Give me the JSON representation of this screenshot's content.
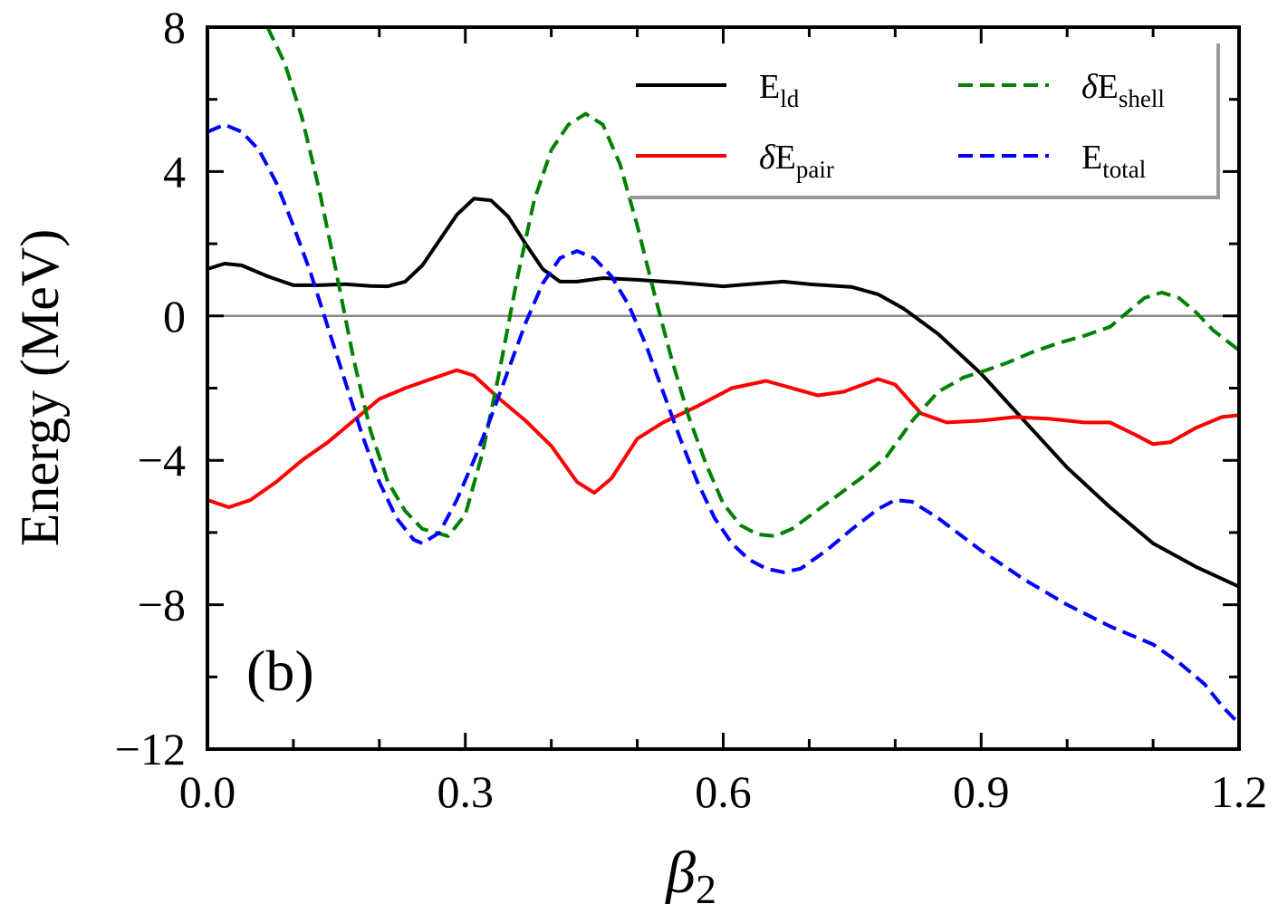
{
  "chart_data": {
    "type": "line",
    "panel_label": "(b)",
    "xlabel": {
      "symbol": "β",
      "subscript": "2"
    },
    "ylabel": "Energy (MeV)",
    "xlim": [
      0.0,
      1.2
    ],
    "ylim": [
      -12,
      8
    ],
    "x_major_ticks": [
      0.0,
      0.3,
      0.6,
      0.9,
      1.2
    ],
    "x_tick_labels": [
      "0.0",
      "0.3",
      "0.6",
      "0.9",
      "1.2"
    ],
    "x_minor_ticks": [
      0.1,
      0.2,
      0.4,
      0.5,
      0.7,
      0.8,
      1.0,
      1.1
    ],
    "y_major_ticks": [
      -12,
      -8,
      -4,
      0,
      4,
      8
    ],
    "y_tick_labels": [
      "−12",
      "−8",
      "−4",
      "0",
      "4",
      "8"
    ],
    "y_minor_ticks": [
      -10,
      -6,
      -2,
      2,
      6
    ],
    "zero_line": true,
    "legend_placement": "top-right",
    "series": [
      {
        "name": "E_ld",
        "label_main": "E",
        "label_sub": "ld",
        "label_prefix": "",
        "color": "#000000",
        "dash": "solid",
        "points": [
          [
            0.0,
            1.3
          ],
          [
            0.02,
            1.45
          ],
          [
            0.04,
            1.4
          ],
          [
            0.07,
            1.1
          ],
          [
            0.1,
            0.85
          ],
          [
            0.13,
            0.85
          ],
          [
            0.16,
            0.88
          ],
          [
            0.19,
            0.83
          ],
          [
            0.21,
            0.82
          ],
          [
            0.23,
            0.95
          ],
          [
            0.25,
            1.4
          ],
          [
            0.27,
            2.1
          ],
          [
            0.29,
            2.8
          ],
          [
            0.31,
            3.25
          ],
          [
            0.33,
            3.2
          ],
          [
            0.35,
            2.75
          ],
          [
            0.37,
            2.0
          ],
          [
            0.39,
            1.3
          ],
          [
            0.41,
            0.95
          ],
          [
            0.43,
            0.95
          ],
          [
            0.46,
            1.05
          ],
          [
            0.5,
            1.0
          ],
          [
            0.55,
            0.92
          ],
          [
            0.6,
            0.82
          ],
          [
            0.63,
            0.88
          ],
          [
            0.67,
            0.95
          ],
          [
            0.7,
            0.88
          ],
          [
            0.75,
            0.8
          ],
          [
            0.78,
            0.6
          ],
          [
            0.81,
            0.2
          ],
          [
            0.85,
            -0.5
          ],
          [
            0.9,
            -1.6
          ],
          [
            0.95,
            -2.9
          ],
          [
            1.0,
            -4.2
          ],
          [
            1.05,
            -5.3
          ],
          [
            1.1,
            -6.3
          ],
          [
            1.15,
            -6.95
          ],
          [
            1.2,
            -7.5
          ]
        ]
      },
      {
        "name": "δE_pair",
        "label_main": "E",
        "label_sub": "pair",
        "label_prefix": "δ",
        "color": "#ff0000",
        "dash": "solid",
        "points": [
          [
            0.0,
            -5.1
          ],
          [
            0.025,
            -5.3
          ],
          [
            0.05,
            -5.1
          ],
          [
            0.08,
            -4.6
          ],
          [
            0.11,
            -4.0
          ],
          [
            0.14,
            -3.5
          ],
          [
            0.17,
            -2.9
          ],
          [
            0.2,
            -2.3
          ],
          [
            0.23,
            -2.0
          ],
          [
            0.26,
            -1.75
          ],
          [
            0.29,
            -1.5
          ],
          [
            0.31,
            -1.65
          ],
          [
            0.34,
            -2.3
          ],
          [
            0.37,
            -2.9
          ],
          [
            0.4,
            -3.6
          ],
          [
            0.43,
            -4.6
          ],
          [
            0.45,
            -4.9
          ],
          [
            0.47,
            -4.5
          ],
          [
            0.5,
            -3.4
          ],
          [
            0.53,
            -2.95
          ],
          [
            0.57,
            -2.5
          ],
          [
            0.61,
            -2.0
          ],
          [
            0.65,
            -1.8
          ],
          [
            0.68,
            -2.0
          ],
          [
            0.71,
            -2.2
          ],
          [
            0.74,
            -2.1
          ],
          [
            0.78,
            -1.75
          ],
          [
            0.8,
            -1.9
          ],
          [
            0.83,
            -2.7
          ],
          [
            0.86,
            -2.95
          ],
          [
            0.9,
            -2.9
          ],
          [
            0.94,
            -2.8
          ],
          [
            0.98,
            -2.85
          ],
          [
            1.02,
            -2.95
          ],
          [
            1.05,
            -2.95
          ],
          [
            1.08,
            -3.3
          ],
          [
            1.1,
            -3.55
          ],
          [
            1.12,
            -3.5
          ],
          [
            1.15,
            -3.1
          ],
          [
            1.18,
            -2.8
          ],
          [
            1.2,
            -2.75
          ]
        ]
      },
      {
        "name": "δE_shell",
        "label_main": "E",
        "label_sub": "shell",
        "label_prefix": "δ",
        "color": "#008000",
        "dash": "dashed",
        "points": [
          [
            0.07,
            8.0
          ],
          [
            0.09,
            7.0
          ],
          [
            0.11,
            5.5
          ],
          [
            0.13,
            3.5
          ],
          [
            0.15,
            1.2
          ],
          [
            0.17,
            -1.2
          ],
          [
            0.19,
            -3.2
          ],
          [
            0.21,
            -4.6
          ],
          [
            0.23,
            -5.4
          ],
          [
            0.25,
            -5.9
          ],
          [
            0.28,
            -6.1
          ],
          [
            0.3,
            -5.5
          ],
          [
            0.32,
            -3.8
          ],
          [
            0.34,
            -1.5
          ],
          [
            0.36,
            1.0
          ],
          [
            0.38,
            3.2
          ],
          [
            0.4,
            4.6
          ],
          [
            0.42,
            5.3
          ],
          [
            0.44,
            5.6
          ],
          [
            0.46,
            5.3
          ],
          [
            0.48,
            4.2
          ],
          [
            0.5,
            2.5
          ],
          [
            0.52,
            0.6
          ],
          [
            0.54,
            -1.2
          ],
          [
            0.56,
            -2.8
          ],
          [
            0.58,
            -4.1
          ],
          [
            0.6,
            -5.2
          ],
          [
            0.62,
            -5.8
          ],
          [
            0.64,
            -6.05
          ],
          [
            0.66,
            -6.1
          ],
          [
            0.68,
            -5.9
          ],
          [
            0.72,
            -5.2
          ],
          [
            0.76,
            -4.5
          ],
          [
            0.79,
            -3.9
          ],
          [
            0.82,
            -2.9
          ],
          [
            0.85,
            -2.1
          ],
          [
            0.88,
            -1.7
          ],
          [
            0.9,
            -1.55
          ],
          [
            0.93,
            -1.3
          ],
          [
            0.96,
            -1.0
          ],
          [
            0.99,
            -0.75
          ],
          [
            1.02,
            -0.55
          ],
          [
            1.05,
            -0.3
          ],
          [
            1.07,
            0.1
          ],
          [
            1.09,
            0.5
          ],
          [
            1.11,
            0.65
          ],
          [
            1.13,
            0.5
          ],
          [
            1.15,
            0.1
          ],
          [
            1.17,
            -0.4
          ],
          [
            1.2,
            -0.95
          ]
        ]
      },
      {
        "name": "E_total",
        "label_main": "E",
        "label_sub": "total",
        "label_prefix": "",
        "color": "#0000ff",
        "dash": "dashed",
        "points": [
          [
            0.0,
            5.1
          ],
          [
            0.02,
            5.3
          ],
          [
            0.04,
            5.1
          ],
          [
            0.06,
            4.6
          ],
          [
            0.08,
            3.7
          ],
          [
            0.1,
            2.5
          ],
          [
            0.12,
            1.2
          ],
          [
            0.14,
            -0.3
          ],
          [
            0.16,
            -1.8
          ],
          [
            0.18,
            -3.3
          ],
          [
            0.2,
            -4.6
          ],
          [
            0.22,
            -5.6
          ],
          [
            0.24,
            -6.2
          ],
          [
            0.25,
            -6.3
          ],
          [
            0.27,
            -6.0
          ],
          [
            0.29,
            -5.1
          ],
          [
            0.31,
            -4.0
          ],
          [
            0.33,
            -2.8
          ],
          [
            0.35,
            -1.5
          ],
          [
            0.37,
            -0.2
          ],
          [
            0.39,
            0.9
          ],
          [
            0.41,
            1.6
          ],
          [
            0.43,
            1.8
          ],
          [
            0.45,
            1.6
          ],
          [
            0.47,
            1.1
          ],
          [
            0.49,
            0.3
          ],
          [
            0.51,
            -0.8
          ],
          [
            0.53,
            -2.1
          ],
          [
            0.55,
            -3.4
          ],
          [
            0.57,
            -4.6
          ],
          [
            0.59,
            -5.6
          ],
          [
            0.61,
            -6.3
          ],
          [
            0.63,
            -6.75
          ],
          [
            0.65,
            -7.0
          ],
          [
            0.67,
            -7.1
          ],
          [
            0.69,
            -7.0
          ],
          [
            0.72,
            -6.5
          ],
          [
            0.75,
            -5.9
          ],
          [
            0.78,
            -5.35
          ],
          [
            0.8,
            -5.1
          ],
          [
            0.82,
            -5.15
          ],
          [
            0.85,
            -5.6
          ],
          [
            0.9,
            -6.5
          ],
          [
            0.95,
            -7.3
          ],
          [
            1.0,
            -8.0
          ],
          [
            1.05,
            -8.6
          ],
          [
            1.1,
            -9.1
          ],
          [
            1.13,
            -9.6
          ],
          [
            1.16,
            -10.2
          ],
          [
            1.18,
            -10.8
          ],
          [
            1.2,
            -11.3
          ]
        ]
      }
    ]
  }
}
